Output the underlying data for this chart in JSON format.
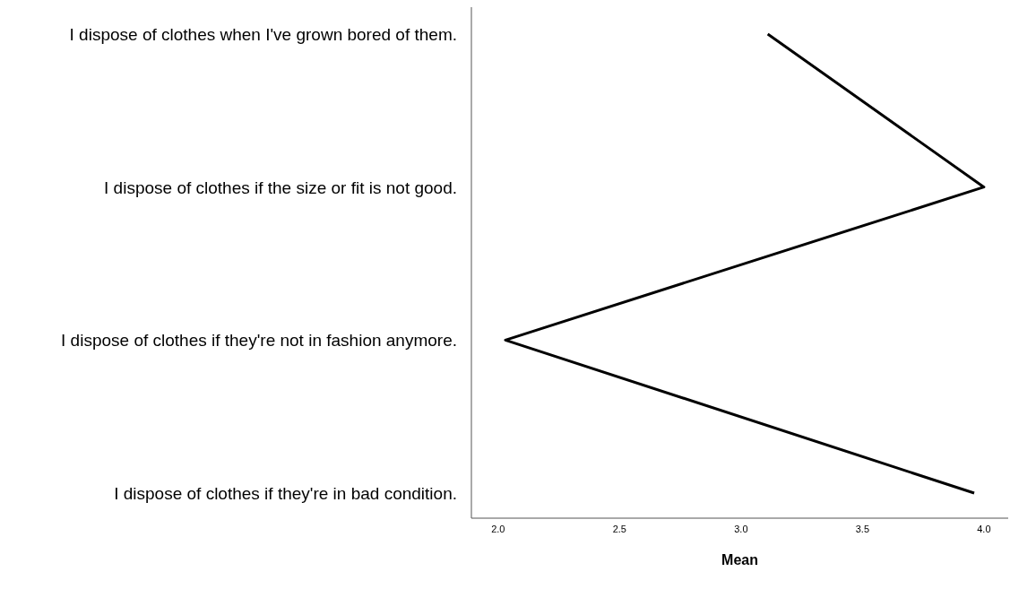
{
  "chart_data": {
    "type": "line",
    "orientation": "horizontal",
    "xlabel": "Mean",
    "categories": [
      "I dispose of clothes when I've grown bored of them.",
      "I dispose of clothes if the size or fit is not good.",
      "I dispose of clothes if they're not in fashion anymore.",
      "I dispose of clothes if they're in bad condition."
    ],
    "values": [
      3.11,
      4.0,
      2.03,
      3.96
    ],
    "color": "#000000",
    "xlim": [
      1.89,
      4.1
    ],
    "xticks": [
      {
        "value": 2,
        "label": "2.0"
      },
      {
        "value": 2.5,
        "label": "2.5"
      },
      {
        "value": 3,
        "label": "3.0"
      },
      {
        "value": 3.5,
        "label": "3.5"
      },
      {
        "value": 4,
        "label": "4.0"
      }
    ],
    "grid": false,
    "marker": "none",
    "line_style": "solid"
  }
}
